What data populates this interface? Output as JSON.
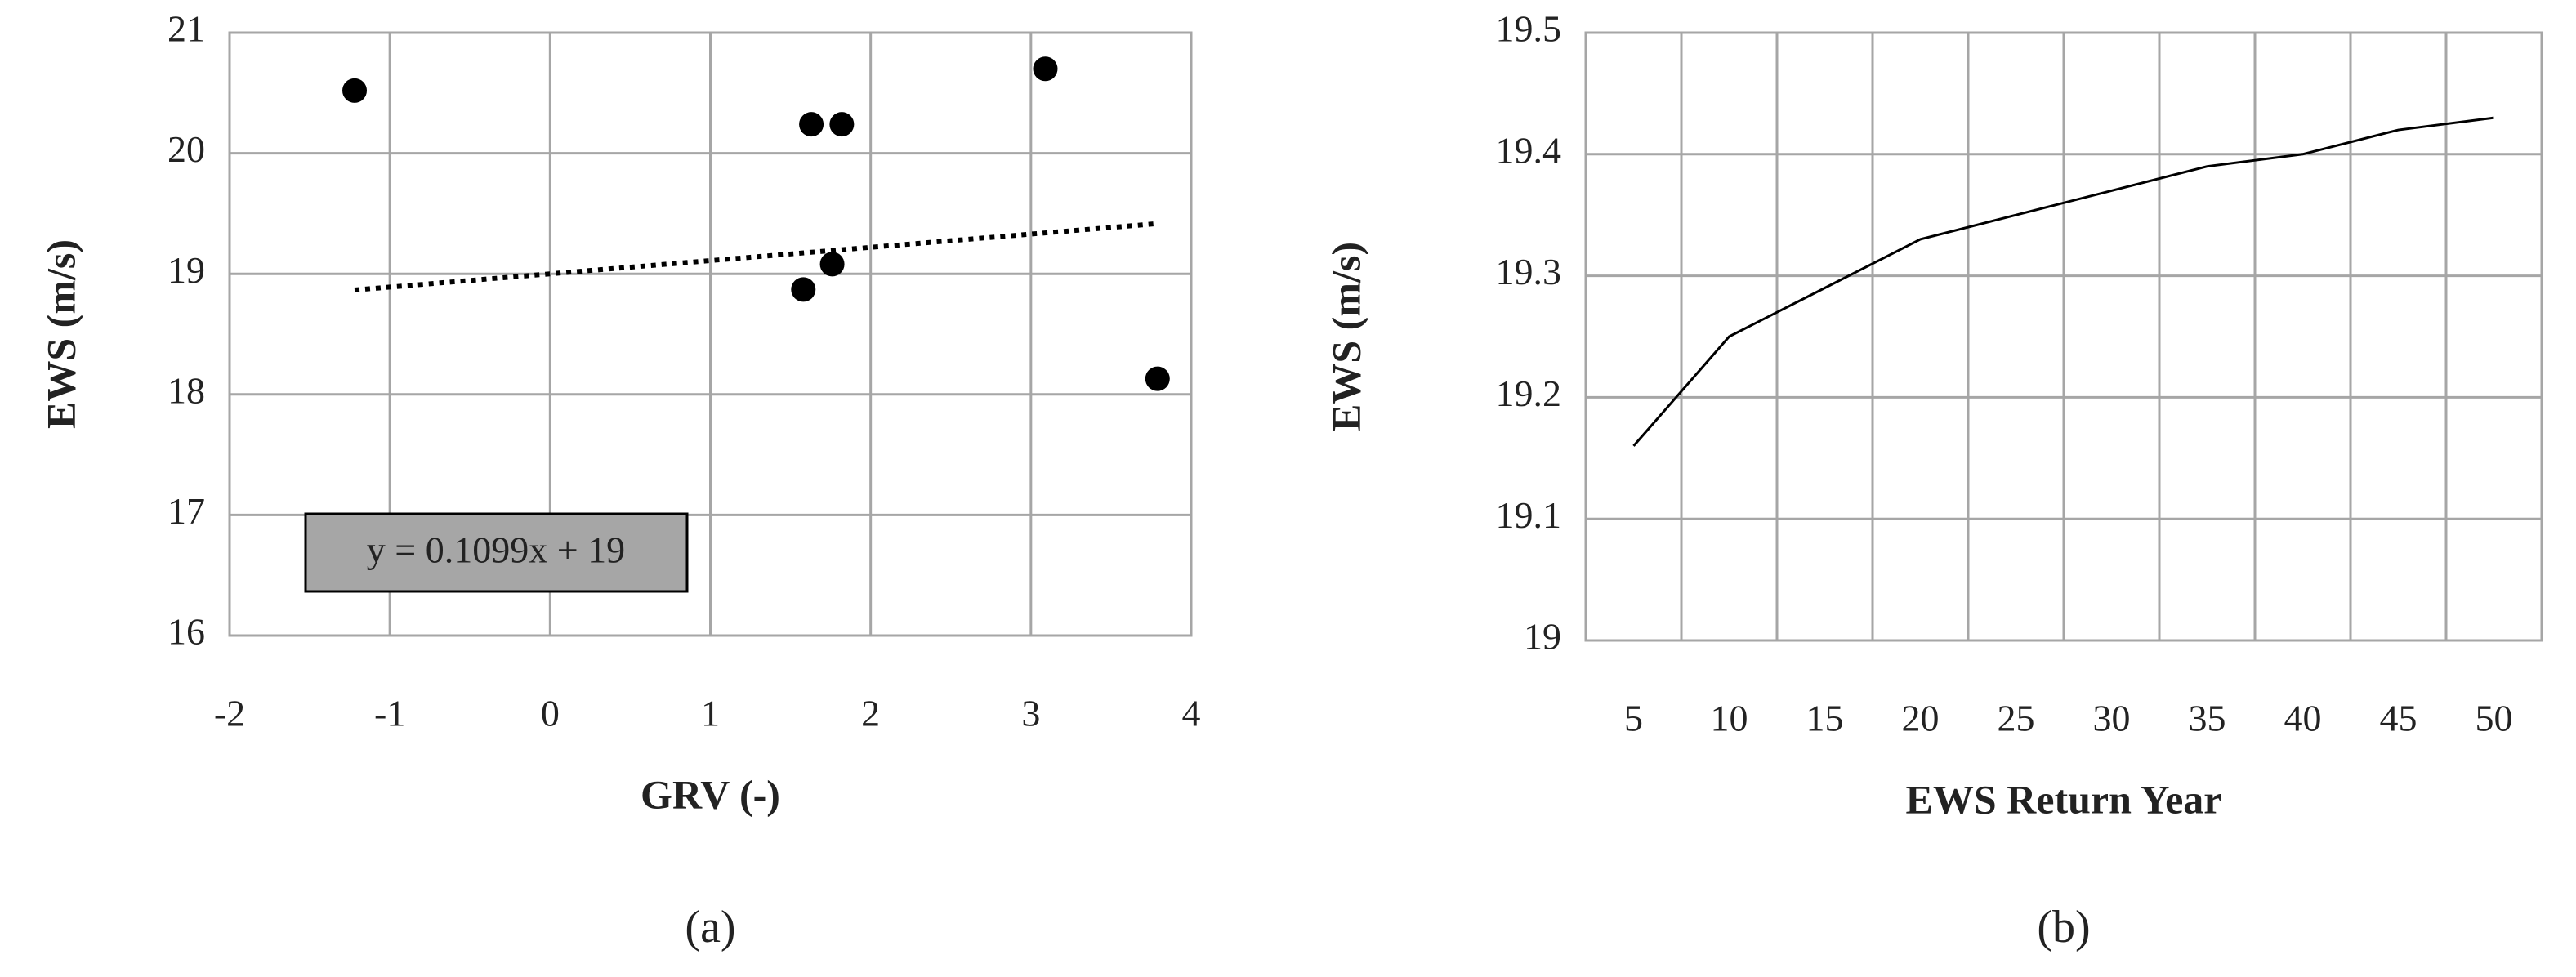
{
  "chart_data": [
    {
      "type": "scatter",
      "panel_label": "(a)",
      "xlabel": "GRV (-)",
      "ylabel": "EWS (m/s)",
      "x": [
        -1.22,
        1.63,
        1.82,
        3.09,
        1.58,
        1.76,
        3.79
      ],
      "values": [
        20.52,
        20.24,
        20.24,
        20.7,
        18.87,
        19.08,
        18.13
      ],
      "color": "#000000",
      "xlim": [
        -2,
        4
      ],
      "xticks": [
        -2,
        -1,
        0,
        1,
        2,
        3,
        4
      ],
      "ylim": [
        16,
        21
      ],
      "yticks": [
        16,
        17,
        18,
        19,
        20,
        21
      ],
      "grid": true,
      "trendline": {
        "slope": 0.1099,
        "intercept": 19,
        "label": "y = 0.1099x + 19"
      }
    },
    {
      "type": "line",
      "panel_label": "(b)",
      "xlabel": "EWS Return Year",
      "ylabel": "EWS (m/s)",
      "categories": [
        "5",
        "10",
        "15",
        "20",
        "25",
        "30",
        "35",
        "40",
        "45",
        "50"
      ],
      "values": [
        19.16,
        19.25,
        19.29,
        19.33,
        19.35,
        19.37,
        19.39,
        19.4,
        19.42,
        19.43
      ],
      "color": "#000000",
      "ylim": [
        19,
        19.5
      ],
      "yticks": [
        19,
        19.1,
        19.2,
        19.3,
        19.4,
        19.5
      ],
      "grid": true
    }
  ]
}
